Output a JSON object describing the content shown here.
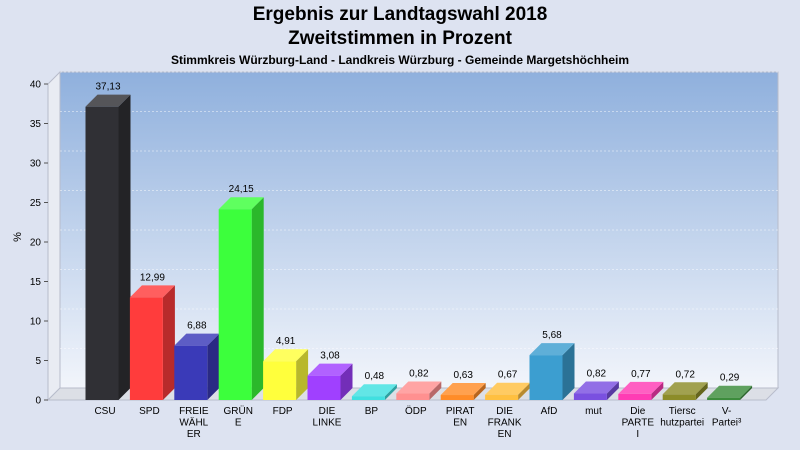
{
  "chart_data": {
    "type": "bar",
    "title": "Ergebnis zur Landtagswahl 2018",
    "subtitle": "Zweitstimmen in Prozent",
    "caption": "Stimmkreis Würzburg-Land - Landkreis Würzburg - Gemeinde Margetshöchheim",
    "ylabel": "%",
    "ylim": [
      0,
      40
    ],
    "yticks": [
      0,
      5,
      10,
      15,
      20,
      25,
      30,
      35,
      40
    ],
    "grid": true,
    "categories": [
      [
        "CSU"
      ],
      [
        "SPD"
      ],
      [
        "FREIE",
        "WÄHL",
        "ER"
      ],
      [
        "GRÜN",
        "E"
      ],
      [
        "FDP"
      ],
      [
        "DIE",
        "LINKE"
      ],
      [
        "BP"
      ],
      [
        "ÖDP"
      ],
      [
        "PIRAT",
        "EN"
      ],
      [
        "DIE",
        "FRANK",
        "EN"
      ],
      [
        "AfD"
      ],
      [
        "mut"
      ],
      [
        "Die",
        "PARTE",
        "I"
      ],
      [
        "Tiersc",
        "hutzpartei"
      ],
      [
        "V-",
        "Partei³"
      ]
    ],
    "values": [
      37.13,
      12.99,
      6.88,
      24.15,
      4.91,
      3.08,
      0.48,
      0.82,
      0.63,
      0.67,
      5.68,
      0.82,
      0.77,
      0.72,
      0.29
    ],
    "value_labels": [
      "37,13",
      "12,99",
      "6,88",
      "24,15",
      "4,91",
      "3,08",
      "0,48",
      "0,82",
      "0,63",
      "0,67",
      "5,68",
      "0,82",
      "0,77",
      "0,72",
      "0,29"
    ],
    "colors": [
      "#303035",
      "#ff3c3c",
      "#3a3ab8",
      "#3cff3c",
      "#ffff3c",
      "#a040ff",
      "#40e0e0",
      "#ff9090",
      "#ff8c28",
      "#ffc040",
      "#3c9ed0",
      "#7a50e0",
      "#ff3cb4",
      "#8c8c28",
      "#3c8c3c"
    ]
  }
}
